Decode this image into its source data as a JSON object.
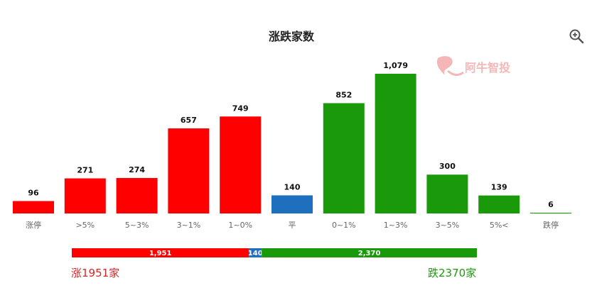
{
  "colors": {
    "up": "#ff0000",
    "flat": "#1f6fbf",
    "down": "#1a9a0a"
  },
  "chart_data": {
    "type": "bar",
    "title": "涨跌家数",
    "categories": [
      "涨停",
      ">5%",
      "5~3%",
      "3~1%",
      "1~0%",
      "平",
      "0~1%",
      "1~3%",
      "3~5%",
      "5%<",
      "跌停"
    ],
    "values": [
      96,
      271,
      274,
      657,
      749,
      140,
      852,
      1079,
      300,
      139,
      6
    ],
    "value_labels": [
      "96",
      "271",
      "274",
      "657",
      "749",
      "140",
      "852",
      "1,079",
      "300",
      "139",
      "6"
    ],
    "bar_colors": [
      "up",
      "up",
      "up",
      "up",
      "up",
      "flat",
      "down",
      "down",
      "down",
      "down",
      "down"
    ],
    "ylim": [
      0,
      1079
    ],
    "grid": false,
    "summary_bar": {
      "segments": [
        {
          "value": 1951,
          "label": "1,951",
          "color": "up"
        },
        {
          "value": 140,
          "label": "140",
          "color": "flat"
        },
        {
          "value": 2370,
          "label": "2,370",
          "color": "down"
        }
      ]
    }
  },
  "summary": {
    "up_text": "涨1951家",
    "down_text": "跌2370家"
  },
  "watermark": {
    "text": "阿牛智投"
  },
  "icons": {
    "zoom": "zoom-in-icon"
  }
}
